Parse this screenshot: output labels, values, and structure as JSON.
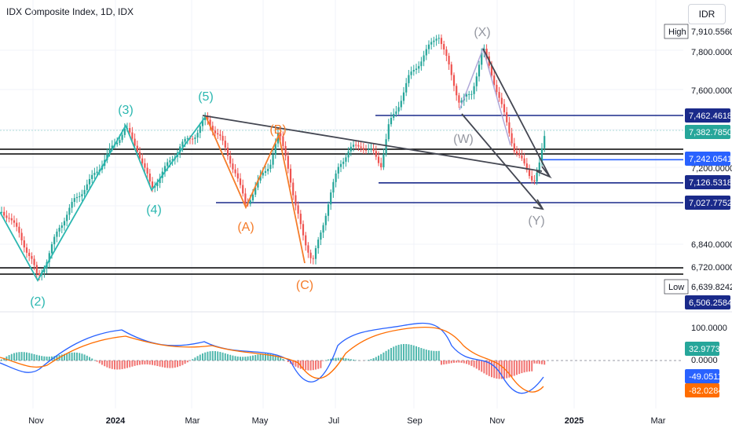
{
  "header": {
    "title": "IDX Composite Index, 1D, IDX",
    "currency": "IDR"
  },
  "colors": {
    "up": "#26a69a",
    "down": "#ef5350",
    "wave_impulse": "#2bb7b0",
    "wave_correction": "#f57c2a",
    "wave_wxy": "#9598a1",
    "trendline": "#434651",
    "level": "#1a2a8a",
    "macd": "#2962ff",
    "signal": "#ff6d00"
  },
  "chart_data": {
    "type": "candlestick",
    "title": "IDX Composite Index, 1D, IDX",
    "price_axis": {
      "ticks": [
        "7,800.0000",
        "7,600.0000",
        "7,200.0000",
        "6,840.0000",
        "6,720.0000"
      ],
      "high_label": "High",
      "high_value": "7,910.5560",
      "low_label": "Low",
      "low_value": "6,639.8242",
      "badges": [
        {
          "value": "7,462.4618",
          "style": "level"
        },
        {
          "value": "7,382.7850",
          "style": "last"
        },
        {
          "value": "7,242.0541",
          "style": "blue"
        },
        {
          "value": "7,126.5318",
          "style": "level"
        },
        {
          "value": "7,027.7752",
          "style": "level"
        },
        {
          "value": "6,506.2584",
          "style": "level"
        }
      ]
    },
    "time_axis": [
      "Nov",
      "2024",
      "Mar",
      "May",
      "Jul",
      "Sep",
      "Nov",
      "2025",
      "Mar"
    ],
    "wave_labels": {
      "impulse": [
        "(2)",
        "(3)",
        "(4)",
        "(5)"
      ],
      "correction": [
        "(A)",
        "(B)",
        "(C)"
      ],
      "complex": [
        "(W)",
        "(X)",
        "(Y)"
      ]
    },
    "levels": [
      7462.4618,
      7242.0541,
      7126.5318,
      7027.7752,
      6720
    ],
    "macd_panel": {
      "ticks": [
        "100.0000",
        "0.0000"
      ],
      "histogram_label": "32.9773",
      "macd_label": "-49.0511",
      "signal_label": "-82.0284"
    }
  }
}
